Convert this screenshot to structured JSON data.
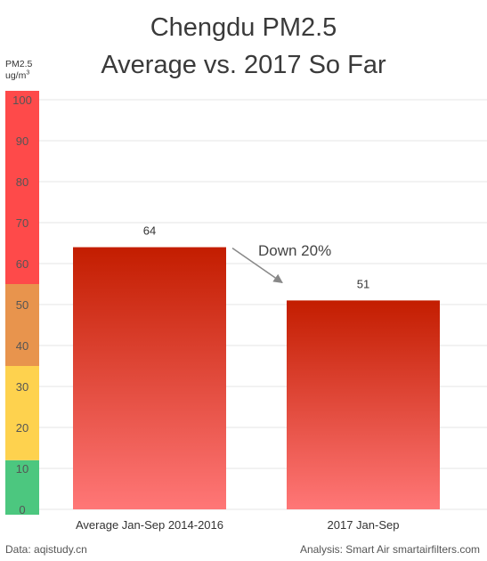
{
  "chart_data": {
    "type": "bar",
    "title_lines": [
      "Chengdu PM2.5",
      "Average vs. 2017 So Far"
    ],
    "ylabel": "PM2.5",
    "ylabel_unit_base": "ug/m",
    "ylabel_unit_sup": "3",
    "ylim": [
      0,
      100
    ],
    "yticks": [
      0,
      10,
      20,
      30,
      40,
      50,
      60,
      70,
      80,
      90,
      100
    ],
    "grid": true,
    "categories": [
      "Average Jan-Sep 2014-2016",
      "2017 Jan-Sep"
    ],
    "values": [
      64,
      51
    ],
    "data_labels": [
      "64",
      "51"
    ],
    "annotation": "Down 20%",
    "aqi_bands": [
      {
        "from": 0,
        "to": 12,
        "color": "#4cc77f"
      },
      {
        "from": 12,
        "to": 35,
        "color": "#fed24e"
      },
      {
        "from": 35,
        "to": 55,
        "color": "#e8944d"
      },
      {
        "from": 55,
        "to": 102,
        "color": "#fe4a4a"
      }
    ],
    "bar_color_top": "#c31d00",
    "bar_color_bottom": "#ff7777"
  },
  "footer": {
    "source": "Data: aqistudy.cn",
    "credit": "Analysis: Smart Air smartairfilters.com"
  }
}
